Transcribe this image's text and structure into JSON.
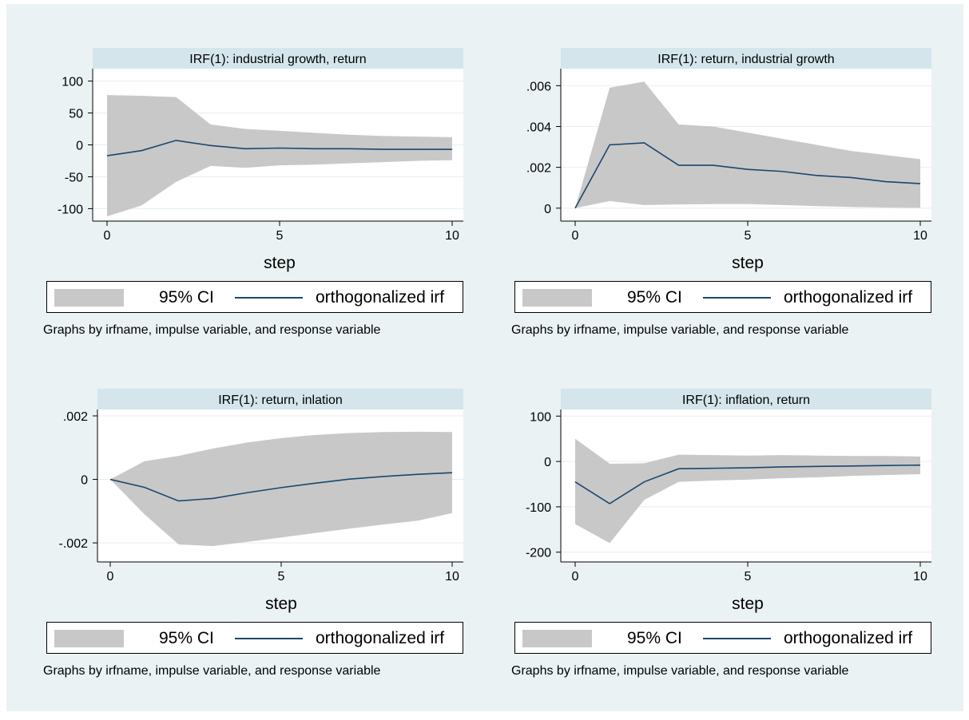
{
  "colors": {
    "background": "#eaf2f3",
    "plot_area": "#ffffff",
    "title_bar": "#d4e5ec",
    "ci_band": "#c8c8c8",
    "irf_line": "#1a476f",
    "gridline": "#e6eef0"
  },
  "chart_data": [
    {
      "type": "area",
      "title": "IRF(1): industrial growth, return",
      "xlabel": "step",
      "ylabel": "",
      "x": [
        0,
        1,
        2,
        3,
        4,
        5,
        6,
        7,
        8,
        9,
        10
      ],
      "xlim": [
        0,
        10
      ],
      "ylim": [
        -112,
        112
      ],
      "xticks": [
        0,
        5,
        10
      ],
      "xtick_labels": [
        "0",
        "5",
        "10"
      ],
      "yticks": [
        100,
        50,
        0,
        -50,
        -100
      ],
      "ytick_labels": [
        "100",
        "50",
        "0",
        "-50",
        "-100"
      ],
      "grid": true,
      "legend_position": "bottom",
      "series": [
        {
          "name": "95% CI",
          "kind": "band",
          "upper": [
            78,
            77,
            75,
            32,
            25,
            22,
            19,
            16,
            14,
            13,
            12
          ],
          "lower": [
            -112,
            -95,
            -58,
            -33,
            -36,
            -32,
            -31,
            -29,
            -27,
            -25,
            -24
          ]
        },
        {
          "name": "orthogonalized irf",
          "kind": "line",
          "values": [
            -17,
            -9,
            7,
            -1,
            -6,
            -5,
            -6,
            -6,
            -7,
            -7,
            -7
          ]
        }
      ]
    },
    {
      "type": "area",
      "title": "IRF(1): return, industrial growth",
      "xlabel": "step",
      "ylabel": "",
      "x": [
        0,
        1,
        2,
        3,
        4,
        5,
        6,
        7,
        8,
        9,
        10
      ],
      "xlim": [
        0,
        10
      ],
      "ylim": [
        -0.0004,
        0.0066
      ],
      "xticks": [
        0,
        5,
        10
      ],
      "xtick_labels": [
        "0",
        "5",
        "10"
      ],
      "yticks": [
        0,
        0.002,
        0.004,
        0.006
      ],
      "ytick_labels": [
        "0",
        ".002",
        ".004",
        ".006"
      ],
      "grid": true,
      "legend_position": "bottom",
      "series": [
        {
          "name": "95% CI",
          "kind": "band",
          "upper": [
            0,
            0.0059,
            0.0062,
            0.0041,
            0.004,
            0.0037,
            0.0034,
            0.0031,
            0.0028,
            0.0026,
            0.0024
          ],
          "lower": [
            0,
            0.00035,
            0.00015,
            0.00018,
            0.0002,
            0.0002,
            0.00015,
            0.0001,
            6e-05,
            3e-05,
            2e-05
          ]
        },
        {
          "name": "orthogonalized irf",
          "kind": "line",
          "values": [
            0,
            0.0031,
            0.0032,
            0.0021,
            0.0021,
            0.0019,
            0.0018,
            0.0016,
            0.0015,
            0.0013,
            0.0012
          ]
        }
      ]
    },
    {
      "type": "area",
      "title": "IRF(1): return, inlation",
      "xlabel": "step",
      "ylabel": "",
      "x": [
        0,
        1,
        2,
        3,
        4,
        5,
        6,
        7,
        8,
        9,
        10
      ],
      "xlim": [
        0,
        10
      ],
      "ylim": [
        -0.00245,
        0.00205
      ],
      "xticks": [
        0,
        5,
        10
      ],
      "xtick_labels": [
        "0",
        "5",
        "10"
      ],
      "yticks": [
        0.002,
        0,
        -0.002
      ],
      "ytick_labels": [
        ".002",
        "0",
        "-.002"
      ],
      "grid": true,
      "legend_position": "bottom",
      "series": [
        {
          "name": "95% CI",
          "kind": "band",
          "upper": [
            0,
            0.00057,
            0.00074,
            0.00097,
            0.00116,
            0.0013,
            0.0014,
            0.00146,
            0.00149,
            0.0015,
            0.00149
          ],
          "lower": [
            0,
            -0.0011,
            -0.00205,
            -0.0021,
            -0.00197,
            -0.00183,
            -0.00169,
            -0.00155,
            -0.00142,
            -0.0013,
            -0.00106
          ]
        },
        {
          "name": "orthogonalized irf",
          "kind": "line",
          "values": [
            0,
            -0.00025,
            -0.00068,
            -0.0006,
            -0.00042,
            -0.00026,
            -0.00012,
            1e-05,
            9e-05,
            0.00016,
            0.00021
          ]
        }
      ]
    },
    {
      "type": "area",
      "title": "IRF(1): inflation, return",
      "xlabel": "step",
      "ylabel": "",
      "x": [
        0,
        1,
        2,
        3,
        4,
        5,
        6,
        7,
        8,
        9,
        10
      ],
      "xlim": [
        0,
        10
      ],
      "ylim": [
        -211,
        104
      ],
      "xticks": [
        0,
        5,
        10
      ],
      "xtick_labels": [
        "0",
        "5",
        "10"
      ],
      "yticks": [
        100,
        0,
        -100,
        -200
      ],
      "ytick_labels": [
        "100",
        "0",
        "-100",
        "-200"
      ],
      "grid": true,
      "legend_position": "bottom",
      "series": [
        {
          "name": "95% CI",
          "kind": "band",
          "upper": [
            50,
            -5,
            -4,
            15,
            14,
            13,
            14,
            13,
            12,
            12,
            11
          ],
          "lower": [
            -138,
            -180,
            -85,
            -45,
            -42,
            -40,
            -37,
            -35,
            -32,
            -30,
            -28
          ]
        },
        {
          "name": "orthogonalized irf",
          "kind": "line",
          "values": [
            -45,
            -93,
            -45,
            -16,
            -15,
            -14,
            -12,
            -11,
            -10,
            -9,
            -8
          ]
        }
      ]
    }
  ],
  "legend": {
    "ci_label": "95% CI",
    "irf_label": "orthogonalized irf"
  },
  "note": "Graphs by irfname, impulse variable, and response variable"
}
